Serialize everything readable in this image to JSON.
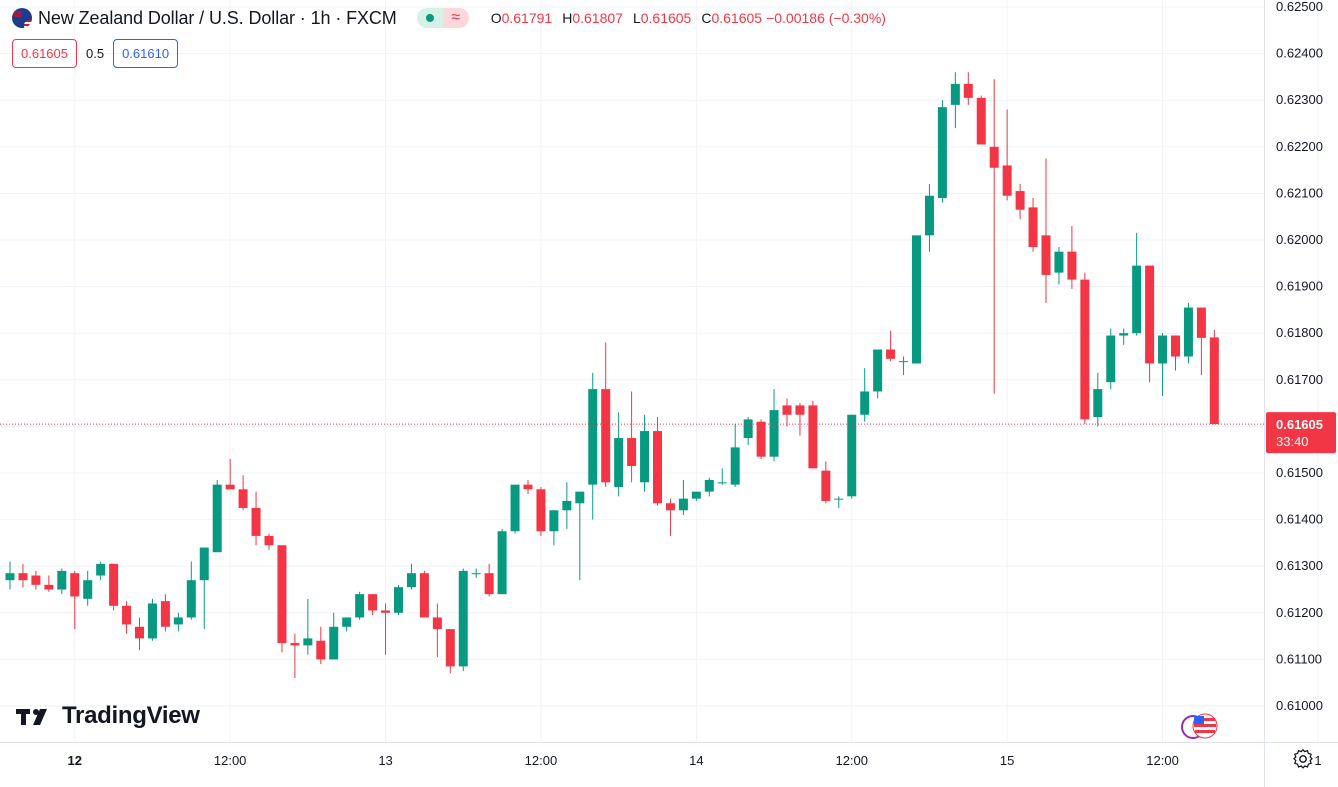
{
  "header": {
    "title": "New Zealand Dollar / U.S. Dollar · 1h · FXCM",
    "ohlc": [
      {
        "key": "O",
        "value": "0.61791"
      },
      {
        "key": "H",
        "value": "0.61807"
      },
      {
        "key": "L",
        "value": "0.61605"
      },
      {
        "key": "C",
        "value": "0.61605"
      }
    ],
    "change": "−0.00186 (−0.30%)",
    "wave_symbol": "≈"
  },
  "bidask": {
    "bid": "0.61605",
    "spread": "0.5",
    "ask": "0.61610"
  },
  "price_tag": {
    "price": "0.61605",
    "countdown": "33:40"
  },
  "logo": {
    "text": "TradingView"
  },
  "icons": {
    "flag": "nzd-usd-flag-icon",
    "settings": "gear-icon",
    "events": "us-event-flag-icon"
  },
  "colors": {
    "up": "#089981",
    "down": "#f23645",
    "grid": "#f0f3fa",
    "text": "#131722",
    "ask": "#2962ff"
  },
  "chart_data": {
    "type": "candlestick",
    "title": "New Zealand Dollar / U.S. Dollar · 1h · FXCM",
    "ylim": [
      0.6097,
      0.6251
    ],
    "y_ticks": [
      "0.62500",
      "0.62400",
      "0.62300",
      "0.62200",
      "0.62100",
      "0.62000",
      "0.61900",
      "0.61800",
      "0.61700",
      "0.61600",
      "0.61500",
      "0.61400",
      "0.61300",
      "0.61200",
      "0.61100",
      "0.61000"
    ],
    "x_ticks": [
      {
        "label": "12",
        "bar": 5,
        "bold": true
      },
      {
        "label": "12:00",
        "bar": 17
      },
      {
        "label": "13",
        "bar": 29
      },
      {
        "label": "12:00",
        "bar": 41
      },
      {
        "label": "14",
        "bar": 53
      },
      {
        "label": "12:00",
        "bar": 65
      },
      {
        "label": "15",
        "bar": 77
      },
      {
        "label": "12:00",
        "bar": 89
      },
      {
        "label": "1",
        "bar": 101
      }
    ],
    "last_price": 0.61605,
    "candles": [
      [
        0.6127,
        0.6131,
        0.6125,
        0.61285
      ],
      [
        0.61285,
        0.61305,
        0.61255,
        0.6127
      ],
      [
        0.6128,
        0.6129,
        0.6125,
        0.6126
      ],
      [
        0.6126,
        0.6128,
        0.61245,
        0.6125
      ],
      [
        0.6125,
        0.61295,
        0.6124,
        0.6129
      ],
      [
        0.61285,
        0.6129,
        0.61165,
        0.61235
      ],
      [
        0.6123,
        0.6129,
        0.61215,
        0.6127
      ],
      [
        0.6128,
        0.6131,
        0.6127,
        0.61305
      ],
      [
        0.61305,
        0.61305,
        0.61205,
        0.61215
      ],
      [
        0.61215,
        0.61225,
        0.61155,
        0.61175
      ],
      [
        0.6117,
        0.6119,
        0.6112,
        0.61145
      ],
      [
        0.61145,
        0.6123,
        0.6114,
        0.6122
      ],
      [
        0.61225,
        0.6124,
        0.6116,
        0.6117
      ],
      [
        0.61175,
        0.612,
        0.6116,
        0.6119
      ],
      [
        0.6119,
        0.6131,
        0.61185,
        0.6127
      ],
      [
        0.6127,
        0.6134,
        0.61165,
        0.6134
      ],
      [
        0.6133,
        0.61485,
        0.6133,
        0.61475
      ],
      [
        0.61475,
        0.6153,
        0.61465,
        0.61465
      ],
      [
        0.61465,
        0.61495,
        0.6142,
        0.61425
      ],
      [
        0.61425,
        0.6146,
        0.61345,
        0.61365
      ],
      [
        0.61365,
        0.6137,
        0.61335,
        0.61345
      ],
      [
        0.61345,
        0.61345,
        0.61115,
        0.61135
      ],
      [
        0.61135,
        0.61155,
        0.6106,
        0.6113
      ],
      [
        0.6113,
        0.6123,
        0.6111,
        0.61145
      ],
      [
        0.6114,
        0.6117,
        0.6109,
        0.611
      ],
      [
        0.611,
        0.612,
        0.611,
        0.6117
      ],
      [
        0.6117,
        0.6119,
        0.6116,
        0.6119
      ],
      [
        0.6119,
        0.61245,
        0.61185,
        0.6124
      ],
      [
        0.6124,
        0.6124,
        0.61195,
        0.61205
      ],
      [
        0.61205,
        0.6122,
        0.6111,
        0.612
      ],
      [
        0.612,
        0.6126,
        0.61195,
        0.61255
      ],
      [
        0.61255,
        0.61305,
        0.6125,
        0.61285
      ],
      [
        0.61285,
        0.6129,
        0.6119,
        0.6119
      ],
      [
        0.6119,
        0.6122,
        0.61105,
        0.61165
      ],
      [
        0.61165,
        0.61165,
        0.6107,
        0.61085
      ],
      [
        0.61085,
        0.61295,
        0.61075,
        0.6129
      ],
      [
        0.61285,
        0.61295,
        0.61275,
        0.61285
      ],
      [
        0.61285,
        0.61305,
        0.61235,
        0.6124
      ],
      [
        0.6124,
        0.6138,
        0.6124,
        0.61375
      ],
      [
        0.61375,
        0.61465,
        0.6137,
        0.61475
      ],
      [
        0.61475,
        0.61485,
        0.61455,
        0.61465
      ],
      [
        0.61465,
        0.6147,
        0.61365,
        0.61375
      ],
      [
        0.61375,
        0.6142,
        0.61345,
        0.6142
      ],
      [
        0.6142,
        0.6148,
        0.6138,
        0.6144
      ],
      [
        0.61435,
        0.6145,
        0.6127,
        0.6146
      ],
      [
        0.61475,
        0.61715,
        0.614,
        0.6168
      ],
      [
        0.6168,
        0.6178,
        0.6147,
        0.6148
      ],
      [
        0.6147,
        0.6163,
        0.6145,
        0.61575
      ],
      [
        0.61575,
        0.61675,
        0.6148,
        0.61515
      ],
      [
        0.6148,
        0.61625,
        0.6146,
        0.6159
      ],
      [
        0.6159,
        0.6162,
        0.6143,
        0.61435
      ],
      [
        0.61435,
        0.61445,
        0.61365,
        0.6142
      ],
      [
        0.6142,
        0.61485,
        0.6141,
        0.61445
      ],
      [
        0.61445,
        0.6146,
        0.6144,
        0.6146
      ],
      [
        0.6146,
        0.6149,
        0.6145,
        0.61485
      ],
      [
        0.6148,
        0.6151,
        0.61475,
        0.6148
      ],
      [
        0.61475,
        0.61605,
        0.6147,
        0.61555
      ],
      [
        0.61575,
        0.6162,
        0.6156,
        0.61615
      ],
      [
        0.6161,
        0.61615,
        0.6153,
        0.61535
      ],
      [
        0.61535,
        0.6168,
        0.61525,
        0.61635
      ],
      [
        0.61645,
        0.6166,
        0.616,
        0.61625
      ],
      [
        0.61645,
        0.6165,
        0.6158,
        0.61625
      ],
      [
        0.61645,
        0.61655,
        0.6151,
        0.6151
      ],
      [
        0.61505,
        0.61525,
        0.61435,
        0.6144
      ],
      [
        0.61445,
        0.6145,
        0.61425,
        0.61445
      ],
      [
        0.6145,
        0.61625,
        0.61445,
        0.61625
      ],
      [
        0.61625,
        0.61725,
        0.6161,
        0.61675
      ],
      [
        0.61675,
        0.61765,
        0.6166,
        0.61765
      ],
      [
        0.61765,
        0.61805,
        0.6174,
        0.61745
      ],
      [
        0.6174,
        0.6175,
        0.6171,
        0.6174
      ],
      [
        0.61735,
        0.6201,
        0.61735,
        0.6201
      ],
      [
        0.6201,
        0.6212,
        0.61975,
        0.62095
      ],
      [
        0.6209,
        0.623,
        0.6208,
        0.62285
      ],
      [
        0.6229,
        0.6236,
        0.6224,
        0.62335
      ],
      [
        0.62335,
        0.6236,
        0.6229,
        0.62305
      ],
      [
        0.62305,
        0.6231,
        0.62205,
        0.62205
      ],
      [
        0.622,
        0.62345,
        0.6167,
        0.62155
      ],
      [
        0.6216,
        0.6228,
        0.62085,
        0.62095
      ],
      [
        0.62105,
        0.6212,
        0.62045,
        0.62065
      ],
      [
        0.6207,
        0.6209,
        0.61975,
        0.61985
      ],
      [
        0.6201,
        0.62175,
        0.61865,
        0.61925
      ],
      [
        0.6193,
        0.61985,
        0.61905,
        0.61975
      ],
      [
        0.61975,
        0.6203,
        0.61895,
        0.61915
      ],
      [
        0.61915,
        0.6193,
        0.61605,
        0.61615
      ],
      [
        0.6162,
        0.61715,
        0.616,
        0.6168
      ],
      [
        0.61695,
        0.6181,
        0.6168,
        0.61795
      ],
      [
        0.61795,
        0.6181,
        0.61775,
        0.618
      ],
      [
        0.618,
        0.62015,
        0.61795,
        0.61945
      ],
      [
        0.61945,
        0.61945,
        0.61695,
        0.61735
      ],
      [
        0.61735,
        0.618,
        0.61665,
        0.61795
      ],
      [
        0.61795,
        0.6179,
        0.6172,
        0.6175
      ],
      [
        0.6175,
        0.61865,
        0.61735,
        0.61855
      ],
      [
        0.61855,
        0.61855,
        0.6171,
        0.6179
      ],
      [
        0.61791,
        0.61807,
        0.61605,
        0.61605
      ]
    ]
  }
}
